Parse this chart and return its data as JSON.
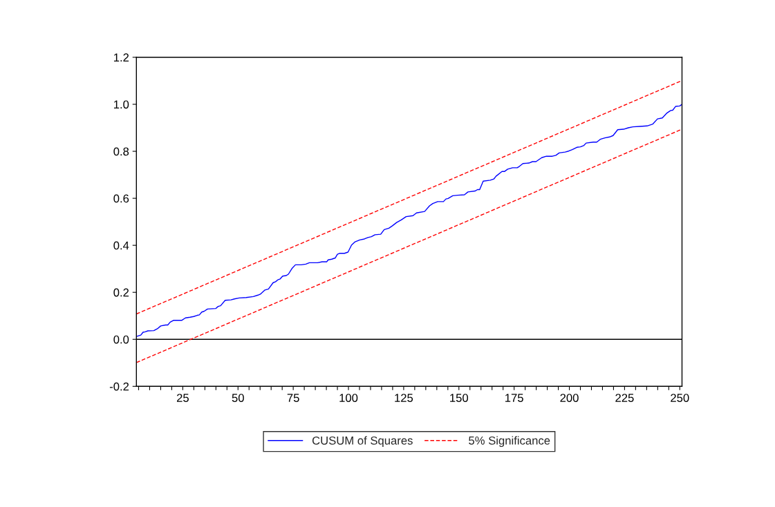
{
  "chart_data": {
    "type": "line",
    "xlim": [
      4,
      251
    ],
    "xticks": [
      {
        "value": 5,
        "label": null
      },
      {
        "value": 10,
        "label": null
      },
      {
        "value": 15,
        "label": null
      },
      {
        "value": 20,
        "label": null
      },
      25,
      {
        "value": 30,
        "label": null
      },
      {
        "value": 35,
        "label": null
      },
      {
        "value": 40,
        "label": null
      },
      {
        "value": 45,
        "label": null
      },
      50,
      {
        "value": 55,
        "label": null
      },
      {
        "value": 60,
        "label": null
      },
      {
        "value": 65,
        "label": null
      },
      {
        "value": 70,
        "label": null
      },
      75,
      {
        "value": 80,
        "label": null
      },
      {
        "value": 85,
        "label": null
      },
      {
        "value": 90,
        "label": null
      },
      {
        "value": 95,
        "label": null
      },
      100,
      {
        "value": 105,
        "label": null
      },
      {
        "value": 110,
        "label": null
      },
      {
        "value": 115,
        "label": null
      },
      {
        "value": 120,
        "label": null
      },
      125,
      {
        "value": 130,
        "label": null
      },
      {
        "value": 135,
        "label": null
      },
      {
        "value": 140,
        "label": null
      },
      {
        "value": 145,
        "label": null
      },
      150,
      {
        "value": 155,
        "label": null
      },
      {
        "value": 160,
        "label": null
      },
      {
        "value": 165,
        "label": null
      },
      {
        "value": 170,
        "label": null
      },
      175,
      {
        "value": 180,
        "label": null
      },
      {
        "value": 185,
        "label": null
      },
      {
        "value": 190,
        "label": null
      },
      {
        "value": 195,
        "label": null
      },
      200,
      {
        "value": 205,
        "label": null
      },
      {
        "value": 210,
        "label": null
      },
      {
        "value": 215,
        "label": null
      },
      {
        "value": 220,
        "label": null
      },
      225,
      {
        "value": 230,
        "label": null
      },
      {
        "value": 235,
        "label": null
      },
      {
        "value": 240,
        "label": null
      },
      {
        "value": 245,
        "label": null
      },
      250
    ],
    "ylim": [
      -0.2,
      1.2
    ],
    "yticks": [
      {
        "value": -0.2,
        "label": "-0.2"
      },
      {
        "value": 0,
        "label": "0.0"
      },
      {
        "value": 0.2,
        "label": "0.2"
      },
      {
        "value": 0.4,
        "label": "0.4"
      },
      {
        "value": 0.6,
        "label": "0.6"
      },
      {
        "value": 0.8,
        "label": "0.8"
      },
      {
        "value": 1.0,
        "label": "1.0"
      },
      {
        "value": 1.2,
        "label": "1.2"
      }
    ],
    "grid": false,
    "legend": "bottom",
    "line_style": "solid",
    "ref_lines": [
      {
        "axis": "y",
        "value": 0,
        "color": "#000000",
        "line_style": "solid"
      }
    ],
    "series": [
      {
        "name": "CUSUM of Squares",
        "color": "#0000ff",
        "x": [
          4,
          6,
          7,
          8,
          9.2,
          11.9,
          13.5,
          15,
          17.2,
          18.2,
          19.3,
          20.9,
          24.6,
          26.2,
          28.3,
          29.9,
          31.5,
          32.5,
          33.6,
          34.6,
          36.2,
          39.9,
          41,
          42.1,
          44.2,
          46.8,
          48.4,
          50.5,
          53.7,
          56.9,
          59,
          60.1,
          62.2,
          63.8,
          65.9,
          67,
          68,
          69.1,
          70.2,
          71.7,
          72.8,
          74.4,
          76,
          78.6,
          80.7,
          82.3,
          86,
          88.1,
          90.2,
          90.8,
          92.4,
          94,
          95,
          96.1,
          98.2,
          99.8,
          101.4,
          103,
          105.1,
          107.2,
          108.8,
          110.4,
          112,
          114.6,
          116.2,
          118.3,
          119.9,
          121.8,
          123.9,
          126.1,
          129.2,
          130.8,
          134.5,
          136.7,
          138.2,
          140.4,
          143,
          144.1,
          145.1,
          147.2,
          149.4,
          152.5,
          154.1,
          157.3,
          158.4,
          159.4,
          161,
          164.2,
          165.8,
          166.8,
          169.5,
          170.6,
          172.1,
          174.3,
          176.4,
          177.4,
          179,
          181.7,
          183.3,
          184.9,
          187.5,
          189.6,
          192.3,
          193.9,
          195.4,
          198.1,
          199.7,
          201.3,
          203.4,
          205,
          206.6,
          207.6,
          210.8,
          212.4,
          214,
          216.1,
          218.2,
          219.8,
          221.9,
          224.6,
          226.7,
          228.8,
          232,
          235.2,
          237.8,
          239.9,
          242.1,
          244.2,
          245.8,
          246.8,
          248.1,
          250,
          251
        ],
        "values": [
          0.012,
          0.018,
          0.03,
          0.032,
          0.036,
          0.037,
          0.045,
          0.057,
          0.061,
          0.061,
          0.073,
          0.081,
          0.081,
          0.091,
          0.094,
          0.097,
          0.102,
          0.104,
          0.116,
          0.119,
          0.129,
          0.131,
          0.14,
          0.143,
          0.166,
          0.168,
          0.172,
          0.176,
          0.178,
          0.182,
          0.188,
          0.192,
          0.21,
          0.214,
          0.241,
          0.245,
          0.253,
          0.257,
          0.269,
          0.271,
          0.277,
          0.301,
          0.317,
          0.317,
          0.32,
          0.326,
          0.326,
          0.33,
          0.33,
          0.338,
          0.341,
          0.346,
          0.362,
          0.366,
          0.366,
          0.371,
          0.401,
          0.415,
          0.423,
          0.427,
          0.433,
          0.437,
          0.445,
          0.447,
          0.467,
          0.473,
          0.483,
          0.497,
          0.508,
          0.522,
          0.526,
          0.538,
          0.544,
          0.568,
          0.578,
          0.586,
          0.586,
          0.597,
          0.599,
          0.611,
          0.613,
          0.615,
          0.627,
          0.631,
          0.637,
          0.637,
          0.673,
          0.677,
          0.682,
          0.694,
          0.714,
          0.714,
          0.724,
          0.73,
          0.73,
          0.736,
          0.748,
          0.75,
          0.756,
          0.756,
          0.773,
          0.779,
          0.779,
          0.783,
          0.793,
          0.797,
          0.801,
          0.807,
          0.817,
          0.819,
          0.825,
          0.835,
          0.839,
          0.839,
          0.851,
          0.857,
          0.861,
          0.867,
          0.892,
          0.894,
          0.9,
          0.904,
          0.906,
          0.908,
          0.916,
          0.938,
          0.942,
          0.963,
          0.973,
          0.975,
          0.991,
          0.993,
          1.0
        ]
      },
      {
        "name": "5% Significance",
        "color": "#ff0000",
        "line_style": "dashed",
        "x": [
          4,
          251
        ],
        "values": [
          0.108,
          1.101
        ]
      },
      {
        "color": "#ff0000",
        "line_style": "dashed",
        "x": [
          4,
          251
        ],
        "values": [
          -0.099,
          0.894
        ]
      }
    ]
  }
}
